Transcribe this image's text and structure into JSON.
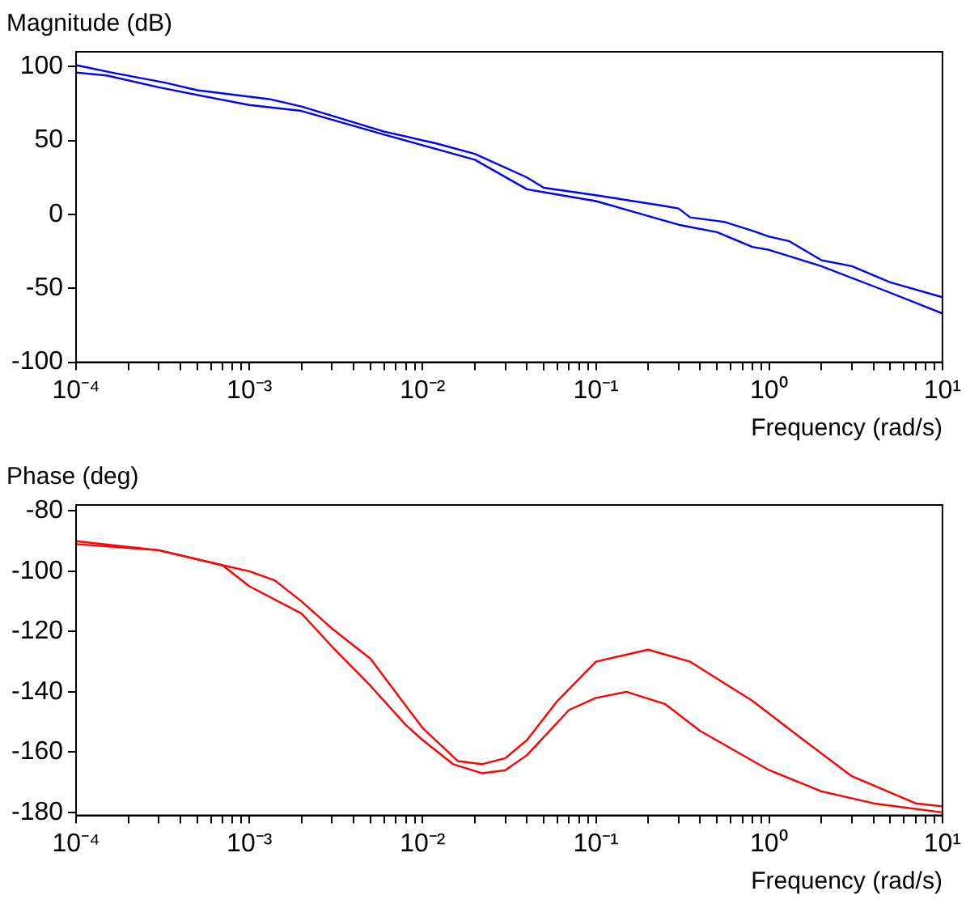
{
  "chart_data": [
    {
      "type": "line",
      "title": "Magnitude (dB)",
      "xlabel": "Frequency (rad/s)",
      "log": "x",
      "grid": false,
      "marker": "none",
      "line_style": "solid",
      "xlim": [
        0.0001,
        10
      ],
      "ylim": [
        -100,
        110
      ],
      "yticks": [
        -100,
        -50,
        0,
        50,
        100
      ],
      "xticks": [
        {
          "value": 0.0001,
          "label": "10⁻⁴"
        },
        {
          "value": 0.0002,
          "label": null
        },
        {
          "value": 0.0003,
          "label": null
        },
        {
          "value": 0.0004,
          "label": null
        },
        {
          "value": 0.0005,
          "label": null
        },
        {
          "value": 0.0006,
          "label": null
        },
        {
          "value": 0.0007,
          "label": null
        },
        {
          "value": 0.0008,
          "label": null
        },
        {
          "value": 0.0009,
          "label": null
        },
        {
          "value": 0.001,
          "label": "10⁻³"
        },
        {
          "value": 0.002,
          "label": null
        },
        {
          "value": 0.003,
          "label": null
        },
        {
          "value": 0.004,
          "label": null
        },
        {
          "value": 0.005,
          "label": null
        },
        {
          "value": 0.006,
          "label": null
        },
        {
          "value": 0.007,
          "label": null
        },
        {
          "value": 0.008,
          "label": null
        },
        {
          "value": 0.009,
          "label": null
        },
        {
          "value": 0.01,
          "label": "10⁻²"
        },
        {
          "value": 0.02,
          "label": null
        },
        {
          "value": 0.03,
          "label": null
        },
        {
          "value": 0.04,
          "label": null
        },
        {
          "value": 0.05,
          "label": null
        },
        {
          "value": 0.06,
          "label": null
        },
        {
          "value": 0.07,
          "label": null
        },
        {
          "value": 0.08,
          "label": null
        },
        {
          "value": 0.09,
          "label": null
        },
        {
          "value": 0.1,
          "label": "10⁻¹"
        },
        {
          "value": 0.2,
          "label": null
        },
        {
          "value": 0.3,
          "label": null
        },
        {
          "value": 0.4,
          "label": null
        },
        {
          "value": 0.5,
          "label": null
        },
        {
          "value": 0.6,
          "label": null
        },
        {
          "value": 0.7,
          "label": null
        },
        {
          "value": 0.8,
          "label": null
        },
        {
          "value": 0.9,
          "label": null
        },
        {
          "value": 1,
          "label": "10⁰"
        },
        {
          "value": 2,
          "label": null
        },
        {
          "value": 3,
          "label": null
        },
        {
          "value": 4,
          "label": null
        },
        {
          "value": 5,
          "label": null
        },
        {
          "value": 6,
          "label": null
        },
        {
          "value": 7,
          "label": null
        },
        {
          "value": 8,
          "label": null
        },
        {
          "value": 9,
          "label": null
        },
        {
          "value": 10,
          "label": "10¹"
        }
      ],
      "series": [
        {
          "color": "#0000ff",
          "x": [
            0.0001,
            0.00016,
            0.00033,
            0.0005,
            0.0013,
            0.002,
            0.006,
            0.012,
            0.02,
            0.04,
            0.05,
            0.1,
            0.24,
            0.3,
            0.35,
            0.55,
            0.8,
            1,
            1.3,
            2,
            3,
            5,
            10
          ],
          "values": [
            101,
            96,
            89,
            84,
            78,
            73,
            56,
            48,
            41,
            25,
            18,
            13,
            6,
            4,
            -2,
            -5,
            -11,
            -15,
            -18,
            -31,
            -35,
            -46,
            -56
          ]
        },
        {
          "color": "#0000ff",
          "x": [
            0.0001,
            0.00015,
            0.0003,
            0.0006,
            0.001,
            0.002,
            0.006,
            0.02,
            0.04,
            0.05,
            0.1,
            0.3,
            0.5,
            0.8,
            1,
            2,
            5,
            10
          ],
          "values": [
            96,
            94,
            86,
            79,
            74,
            70,
            54,
            37,
            17,
            15,
            9,
            -7,
            -12,
            -22,
            -24,
            -35,
            -53,
            -67
          ]
        }
      ]
    },
    {
      "type": "line",
      "title": "Phase (deg)",
      "xlabel": "Frequency (rad/s)",
      "log": "x",
      "grid": false,
      "marker": "none",
      "line_style": "solid",
      "xlim": [
        0.0001,
        10
      ],
      "ylim": [
        -181,
        -78
      ],
      "yticks": [
        -180,
        -160,
        -140,
        -120,
        -100,
        -80
      ],
      "xticks": [
        {
          "value": 0.0001,
          "label": "10⁻⁴"
        },
        {
          "value": 0.0002,
          "label": null
        },
        {
          "value": 0.0003,
          "label": null
        },
        {
          "value": 0.0004,
          "label": null
        },
        {
          "value": 0.0005,
          "label": null
        },
        {
          "value": 0.0006,
          "label": null
        },
        {
          "value": 0.0007,
          "label": null
        },
        {
          "value": 0.0008,
          "label": null
        },
        {
          "value": 0.0009,
          "label": null
        },
        {
          "value": 0.001,
          "label": "10⁻³"
        },
        {
          "value": 0.002,
          "label": null
        },
        {
          "value": 0.003,
          "label": null
        },
        {
          "value": 0.004,
          "label": null
        },
        {
          "value": 0.005,
          "label": null
        },
        {
          "value": 0.006,
          "label": null
        },
        {
          "value": 0.007,
          "label": null
        },
        {
          "value": 0.008,
          "label": null
        },
        {
          "value": 0.009,
          "label": null
        },
        {
          "value": 0.01,
          "label": "10⁻²"
        },
        {
          "value": 0.02,
          "label": null
        },
        {
          "value": 0.03,
          "label": null
        },
        {
          "value": 0.04,
          "label": null
        },
        {
          "value": 0.05,
          "label": null
        },
        {
          "value": 0.06,
          "label": null
        },
        {
          "value": 0.07,
          "label": null
        },
        {
          "value": 0.08,
          "label": null
        },
        {
          "value": 0.09,
          "label": null
        },
        {
          "value": 0.1,
          "label": "10⁻¹"
        },
        {
          "value": 0.2,
          "label": null
        },
        {
          "value": 0.3,
          "label": null
        },
        {
          "value": 0.4,
          "label": null
        },
        {
          "value": 0.5,
          "label": null
        },
        {
          "value": 0.6,
          "label": null
        },
        {
          "value": 0.7,
          "label": null
        },
        {
          "value": 0.8,
          "label": null
        },
        {
          "value": 0.9,
          "label": null
        },
        {
          "value": 1,
          "label": "10⁰"
        },
        {
          "value": 2,
          "label": null
        },
        {
          "value": 3,
          "label": null
        },
        {
          "value": 4,
          "label": null
        },
        {
          "value": 5,
          "label": null
        },
        {
          "value": 6,
          "label": null
        },
        {
          "value": 7,
          "label": null
        },
        {
          "value": 8,
          "label": null
        },
        {
          "value": 9,
          "label": null
        },
        {
          "value": 10,
          "label": "10¹"
        }
      ],
      "series": [
        {
          "color": "#ff0000",
          "x": [
            0.0001,
            0.0003,
            0.0007,
            0.001,
            0.0014,
            0.002,
            0.003,
            0.005,
            0.01,
            0.016,
            0.022,
            0.03,
            0.04,
            0.06,
            0.1,
            0.2,
            0.35,
            0.8,
            1.5,
            3,
            7,
            10
          ],
          "values": [
            -90,
            -93,
            -98,
            -100,
            -103,
            -110,
            -119,
            -129,
            -152,
            -163,
            -164,
            -162,
            -156,
            -143,
            -130,
            -126,
            -130,
            -143,
            -155,
            -168,
            -177,
            -178
          ]
        },
        {
          "color": "#ff0000",
          "x": [
            0.0001,
            0.0003,
            0.0007,
            0.001,
            0.002,
            0.003,
            0.005,
            0.008,
            0.01,
            0.015,
            0.022,
            0.03,
            0.04,
            0.07,
            0.1,
            0.15,
            0.25,
            0.4,
            1,
            2,
            4,
            10
          ],
          "values": [
            -91,
            -93,
            -98,
            -105,
            -114,
            -125,
            -138,
            -151,
            -156,
            -164,
            -167,
            -166,
            -161,
            -146,
            -142,
            -140,
            -144,
            -153,
            -166,
            -173,
            -177,
            -180
          ]
        }
      ]
    }
  ]
}
